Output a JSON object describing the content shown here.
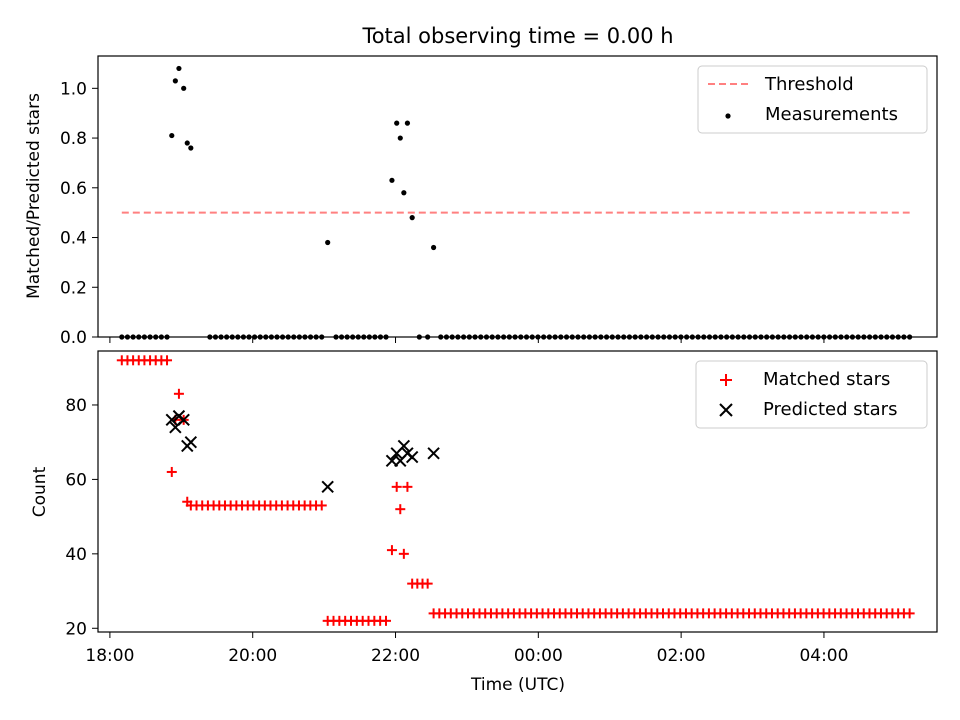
{
  "chart_data": [
    {
      "type": "scatter",
      "title": "Total observing time = 0.00 h",
      "ylabel": "Matched/Predicted stars",
      "xlabel": "",
      "ylim": [
        0,
        1.13
      ],
      "yticks": [
        "0.0",
        "0.2",
        "0.4",
        "0.6",
        "0.8",
        "1.0"
      ],
      "legend_position": "upper right",
      "grid": false,
      "threshold": {
        "name": "Threshold",
        "value": 0.5,
        "x_range": [
          "18:10",
          "05:12"
        ],
        "color": "#ff8080",
        "style": "dashed"
      },
      "measurements": {
        "name": "Measurements",
        "color": "#000000",
        "nonzero_points": [
          {
            "x": "18:52",
            "y": 0.81
          },
          {
            "x": "18:55",
            "y": 1.03
          },
          {
            "x": "18:58",
            "y": 1.08
          },
          {
            "x": "19:02",
            "y": 1.0
          },
          {
            "x": "19:05",
            "y": 0.78
          },
          {
            "x": "19:08",
            "y": 0.76
          },
          {
            "x": "21:03",
            "y": 0.38
          },
          {
            "x": "21:57",
            "y": 0.63
          },
          {
            "x": "22:01",
            "y": 0.86
          },
          {
            "x": "22:04",
            "y": 0.8
          },
          {
            "x": "22:07",
            "y": 0.58
          },
          {
            "x": "22:10",
            "y": 0.86
          },
          {
            "x": "22:14",
            "y": 0.48
          },
          {
            "x": "22:32",
            "y": 0.36
          }
        ],
        "zero_ranges": [
          [
            "18:10",
            "18:48"
          ],
          [
            "19:24",
            "20:58"
          ],
          [
            "21:10",
            "21:52"
          ],
          [
            "22:20",
            "22:27"
          ],
          [
            "22:38",
            "05:12"
          ]
        ]
      }
    },
    {
      "type": "scatter",
      "title": "",
      "ylabel": "Count",
      "xlabel": "Time (UTC)",
      "ylim": [
        19,
        94.5
      ],
      "yticks": [
        "20",
        "40",
        "60",
        "80"
      ],
      "xticks": [
        "18:00",
        "20:00",
        "22:00",
        "00:00",
        "02:00",
        "04:00"
      ],
      "legend_position": "upper right",
      "grid": false,
      "series": [
        {
          "name": "Matched stars",
          "marker": "+",
          "color": "#ff0000",
          "points": [
            {
              "x": "18:52",
              "y": 62
            },
            {
              "x": "18:55",
              "y": 76
            },
            {
              "x": "18:58",
              "y": 83
            },
            {
              "x": "19:02",
              "y": 76
            },
            {
              "x": "19:05",
              "y": 54
            },
            {
              "x": "21:57",
              "y": 41
            },
            {
              "x": "22:01",
              "y": 58
            },
            {
              "x": "22:04",
              "y": 52
            },
            {
              "x": "22:07",
              "y": 40
            },
            {
              "x": "22:10",
              "y": 58
            }
          ],
          "runs": [
            {
              "from": "18:10",
              "to": "18:48",
              "y": 92
            },
            {
              "from": "19:08",
              "to": "20:58",
              "y": 53
            },
            {
              "from": "21:03",
              "to": "21:52",
              "y": 22
            },
            {
              "from": "22:14",
              "to": "22:27",
              "y": 32
            },
            {
              "from": "22:32",
              "to": "05:12",
              "y": 24
            }
          ]
        },
        {
          "name": "Predicted stars",
          "marker": "x",
          "color": "#000000",
          "points": [
            {
              "x": "18:52",
              "y": 76
            },
            {
              "x": "18:55",
              "y": 74
            },
            {
              "x": "18:58",
              "y": 77
            },
            {
              "x": "19:02",
              "y": 76
            },
            {
              "x": "19:05",
              "y": 69
            },
            {
              "x": "19:08",
              "y": 70
            },
            {
              "x": "21:03",
              "y": 58
            },
            {
              "x": "21:57",
              "y": 65
            },
            {
              "x": "22:01",
              "y": 67
            },
            {
              "x": "22:04",
              "y": 65
            },
            {
              "x": "22:07",
              "y": 69
            },
            {
              "x": "22:10",
              "y": 67
            },
            {
              "x": "22:14",
              "y": 66
            },
            {
              "x": "22:32",
              "y": 67
            }
          ]
        }
      ]
    }
  ]
}
